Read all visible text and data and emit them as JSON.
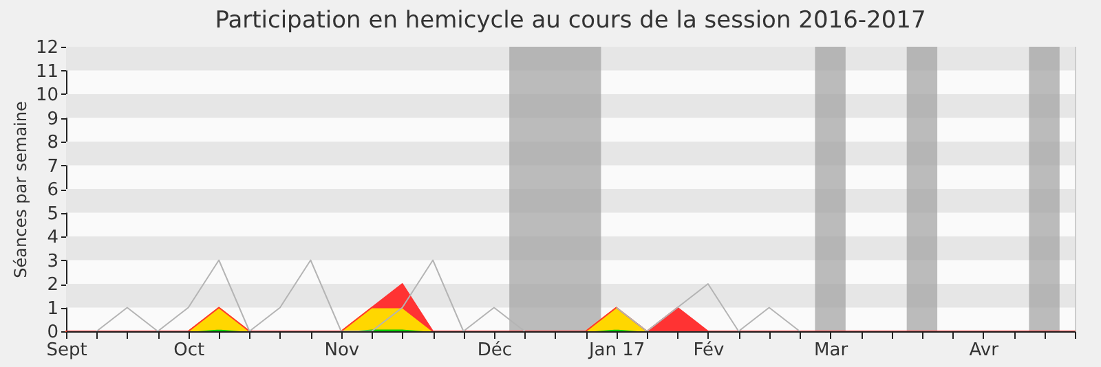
{
  "chart_data": {
    "type": "area",
    "title": "Participation en hemicycle au cours de la session 2016-2017",
    "ylabel": "Séances par semaine",
    "categories": [
      "Sept",
      null,
      null,
      null,
      "Oct",
      null,
      null,
      null,
      null,
      "Nov",
      null,
      null,
      null,
      null,
      "Déc",
      null,
      null,
      null,
      "Jan 17",
      null,
      null,
      "Fév",
      null,
      null,
      null,
      "Mar",
      null,
      null,
      null,
      null,
      "Avr",
      null,
      null,
      null
    ],
    "ylim": [
      0,
      12
    ],
    "yticks": [
      0,
      1,
      2,
      3,
      4,
      5,
      6,
      7,
      8,
      9,
      10,
      11,
      12
    ],
    "stacked": true,
    "grid": false,
    "series": [
      {
        "color": "#00cc00",
        "values": [
          0,
          0,
          0,
          0,
          0,
          0.1,
          0,
          0,
          0,
          0,
          0.1,
          0.1,
          0,
          0,
          0,
          0,
          0,
          0,
          0.1,
          0,
          0,
          0,
          0,
          0,
          0,
          0,
          0,
          0,
          0,
          0,
          0,
          0,
          0,
          0
        ]
      },
      {
        "color": "#ffd700",
        "values": [
          0,
          0,
          0,
          0,
          0,
          0.9,
          0,
          0,
          0,
          0,
          0.9,
          0.9,
          0,
          0,
          0,
          0,
          0,
          0,
          0.9,
          0,
          0,
          0,
          0,
          0,
          0,
          0,
          0,
          0,
          0,
          0,
          0,
          0,
          0,
          0
        ]
      },
      {
        "color": "#ff3333",
        "values": [
          0,
          0,
          0,
          0,
          0,
          0,
          0,
          0,
          0,
          0,
          0,
          1,
          0,
          0,
          0,
          0,
          0,
          0,
          0,
          0,
          1,
          0,
          0,
          0,
          0,
          0,
          0,
          0,
          0,
          0,
          0,
          0,
          0,
          0
        ]
      },
      {
        "type": "line",
        "color": "#b4b4b4",
        "values": [
          null,
          0,
          1,
          0,
          1,
          3,
          0,
          1,
          3,
          0,
          0,
          1,
          3,
          0,
          1,
          0,
          null,
          null,
          1,
          0,
          1,
          2,
          0,
          1,
          0,
          null,
          null,
          null,
          null,
          null,
          null,
          null,
          null,
          null
        ]
      }
    ],
    "bands": [
      {
        "axis": "y",
        "from": 1,
        "to": 2,
        "color": "#e6e6e6"
      },
      {
        "axis": "y",
        "from": 3,
        "to": 4,
        "color": "#e6e6e6"
      },
      {
        "axis": "y",
        "from": 5,
        "to": 6,
        "color": "#e6e6e6"
      },
      {
        "axis": "y",
        "from": 7,
        "to": 8,
        "color": "#e6e6e6"
      },
      {
        "axis": "y",
        "from": 9,
        "to": 10,
        "color": "#e6e6e6"
      },
      {
        "axis": "y",
        "from": 11,
        "to": 12,
        "color": "#e6e6e6"
      }
    ]
  }
}
